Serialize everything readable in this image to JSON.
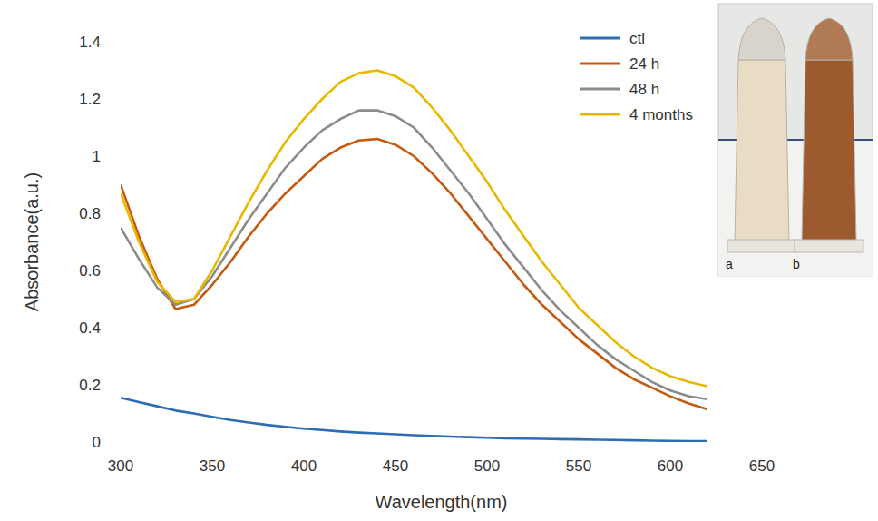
{
  "chart_data": {
    "type": "line",
    "x_label": "Wavelength(nm)",
    "y_label": "Absorbance(a.u.)",
    "x": [
      300,
      310,
      320,
      330,
      340,
      350,
      360,
      370,
      380,
      390,
      400,
      410,
      420,
      430,
      440,
      450,
      460,
      470,
      480,
      490,
      500,
      510,
      520,
      530,
      540,
      550,
      560,
      570,
      580,
      590,
      600,
      610,
      620
    ],
    "series": [
      {
        "name": "ctl",
        "color": "#2e6db4",
        "values": [
          0.155,
          0.14,
          0.125,
          0.11,
          0.1,
          0.088,
          0.077,
          0.068,
          0.06,
          0.053,
          0.047,
          0.042,
          0.037,
          0.033,
          0.03,
          0.027,
          0.024,
          0.021,
          0.019,
          0.017,
          0.015,
          0.013,
          0.012,
          0.011,
          0.01,
          0.009,
          0.008,
          0.007,
          0.006,
          0.005,
          0.004,
          0.003,
          0.003
        ]
      },
      {
        "name": "24 h",
        "color": "#c55a11",
        "values": [
          0.9,
          0.72,
          0.57,
          0.465,
          0.48,
          0.55,
          0.63,
          0.72,
          0.8,
          0.87,
          0.93,
          0.99,
          1.03,
          1.055,
          1.06,
          1.04,
          1.0,
          0.94,
          0.87,
          0.79,
          0.71,
          0.63,
          0.55,
          0.48,
          0.42,
          0.36,
          0.31,
          0.26,
          0.22,
          0.19,
          0.16,
          0.135,
          0.115
        ]
      },
      {
        "name": "48 h",
        "color": "#8c8c8c",
        "values": [
          0.75,
          0.64,
          0.54,
          0.48,
          0.5,
          0.58,
          0.68,
          0.78,
          0.87,
          0.96,
          1.03,
          1.09,
          1.13,
          1.16,
          1.16,
          1.14,
          1.1,
          1.03,
          0.95,
          0.87,
          0.78,
          0.69,
          0.61,
          0.53,
          0.46,
          0.4,
          0.34,
          0.29,
          0.25,
          0.21,
          0.18,
          0.16,
          0.15
        ]
      },
      {
        "name": "4 months",
        "color": "#e8b800",
        "values": [
          0.87,
          0.7,
          0.56,
          0.49,
          0.5,
          0.6,
          0.72,
          0.84,
          0.95,
          1.05,
          1.13,
          1.2,
          1.26,
          1.29,
          1.3,
          1.28,
          1.24,
          1.17,
          1.09,
          1.0,
          0.91,
          0.81,
          0.72,
          0.63,
          0.55,
          0.47,
          0.41,
          0.35,
          0.3,
          0.26,
          0.23,
          0.21,
          0.195
        ]
      }
    ],
    "xlim": [
      300,
      650
    ],
    "xticks": [
      300,
      350,
      400,
      450,
      500,
      550,
      600,
      650
    ],
    "ylim": [
      0,
      1.4
    ],
    "yticks": [
      0,
      0.2,
      0.4,
      0.6,
      0.8,
      1,
      1.2,
      1.4
    ],
    "grid": false,
    "legend": "upper right",
    "inset_labels": [
      "a",
      "b"
    ]
  }
}
